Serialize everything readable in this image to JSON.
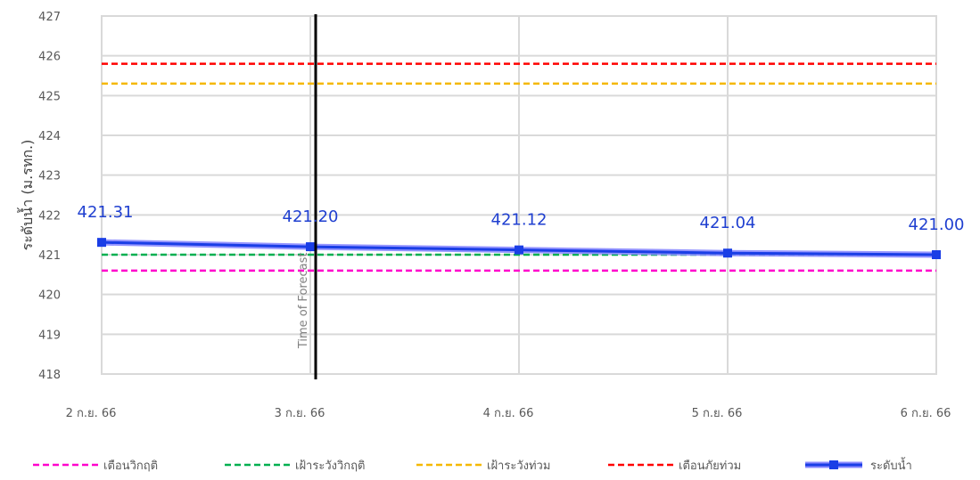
{
  "chart_data": {
    "type": "line",
    "ylabel": "ระดับน้ำ (ม.รทก.)",
    "ylim": [
      418,
      427
    ],
    "yticks": [
      "418",
      "419",
      "420",
      "421",
      "422",
      "423",
      "424",
      "425",
      "426",
      "427"
    ],
    "x": [
      "2 ก.ย. 66",
      "3 ก.ย. 66",
      "4 ก.ย. 66",
      "5 ก.ย. 66",
      "6 ก.ย. 66"
    ],
    "grid": true,
    "legend_position": "bottom",
    "thresholds": [
      {
        "name": "เตือนวิกฤติ",
        "value": 420.6,
        "color": "#ff00cc"
      },
      {
        "name": "เฝ้าระวังวิกฤติ",
        "value": 421.0,
        "color": "#00b050"
      },
      {
        "name": "เฝ้าระวังท่วม",
        "value": 425.3,
        "color": "#f5b800"
      },
      {
        "name": "เตือนภัยท่วม",
        "value": 425.8,
        "color": "#ff0000"
      }
    ],
    "series": [
      {
        "name": "ระดับน้ำ",
        "values": [
          421.31,
          421.2,
          421.12,
          421.04,
          421.0
        ],
        "labels": [
          "421.31",
          "421.20",
          "421.12",
          "421.04",
          "421.00"
        ],
        "color": "#1a3ee6"
      }
    ],
    "annotation": {
      "text": "Time of Forecast",
      "x_index": 1
    }
  }
}
